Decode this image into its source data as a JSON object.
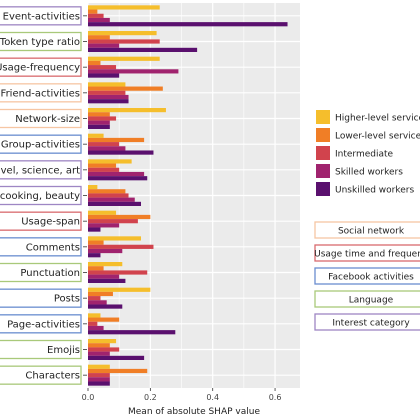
{
  "chart_data": {
    "type": "bar",
    "orientation": "horizontal",
    "categories": [
      "Event-activities",
      "Token type ratio",
      "Usage-frequency",
      "Friend-activities",
      "Network-size",
      "Group-activities",
      "Travel, science, art",
      "Leisure, walking, cooking, beauty",
      "Usage-span",
      "Comments",
      "Punctuation",
      "Posts",
      "Page-activities",
      "Emojis",
      "Characters"
    ],
    "category_groups": [
      "Interest category",
      "Language",
      "Usage time and frequency",
      "Social network",
      "Social network",
      "Facebook activities",
      "Interest category",
      "Interest category",
      "Usage time and frequency",
      "Facebook activities",
      "Language",
      "Facebook activities",
      "Facebook activities",
      "Language",
      "Language"
    ],
    "series": [
      {
        "name": "Higher-level service class",
        "values": [
          0.23,
          0.22,
          0.23,
          0.12,
          0.25,
          0.05,
          0.14,
          0.03,
          0.09,
          0.17,
          0.11,
          0.2,
          0.04,
          0.09,
          0.07
        ]
      },
      {
        "name": "Lower-level service class",
        "values": [
          0.03,
          0.07,
          0.04,
          0.24,
          0.07,
          0.18,
          0.09,
          0.12,
          0.2,
          0.05,
          0.05,
          0.08,
          0.1,
          0.07,
          0.19
        ]
      },
      {
        "name": "Intermediate",
        "values": [
          0.05,
          0.23,
          0.09,
          0.12,
          0.09,
          0.1,
          0.1,
          0.13,
          0.16,
          0.21,
          0.19,
          0.04,
          0.03,
          0.1,
          0.07
        ]
      },
      {
        "name": "Skilled workers",
        "values": [
          0.07,
          0.1,
          0.29,
          0.13,
          0.07,
          0.12,
          0.18,
          0.15,
          0.1,
          0.11,
          0.1,
          0.06,
          0.05,
          0.07,
          0.07
        ]
      },
      {
        "name": "Unskilled workers",
        "values": [
          0.64,
          0.35,
          0.1,
          0.13,
          0.07,
          0.21,
          0.19,
          0.17,
          0.04,
          0.04,
          0.12,
          0.11,
          0.28,
          0.18,
          0.07
        ]
      }
    ],
    "xlabel": "Mean of absolute SHAP value",
    "xlim": [
      0,
      0.68
    ],
    "xticks": [
      "0.0",
      "0.2",
      "0.4",
      "0.6"
    ],
    "xtick_values": [
      0,
      0.2,
      0.4,
      0.6
    ],
    "grid": true,
    "legend_placement": "right",
    "legend_series": [
      "Higher-level service cla",
      "Lower-level service cla",
      "Intermediate",
      "Skilled workers",
      "Unskilled workers"
    ],
    "legend_categories": [
      "Social network",
      "Usage time and frequenc",
      "Facebook activities",
      "Language",
      "Interest category"
    ]
  },
  "colors": {
    "series": [
      "#F5BE2C",
      "#F07E26",
      "#D1434D",
      "#A0236E",
      "#5A106E"
    ],
    "categories": {
      "Social network": "#F6C6A3",
      "Usage time and frequency": "#D96A6E",
      "Facebook activities": "#6A8DD0",
      "Language": "#A9C97A",
      "Interest category": "#9E86C4"
    },
    "panel": "#EBEBEB",
    "grid": "#FFFFFF"
  }
}
